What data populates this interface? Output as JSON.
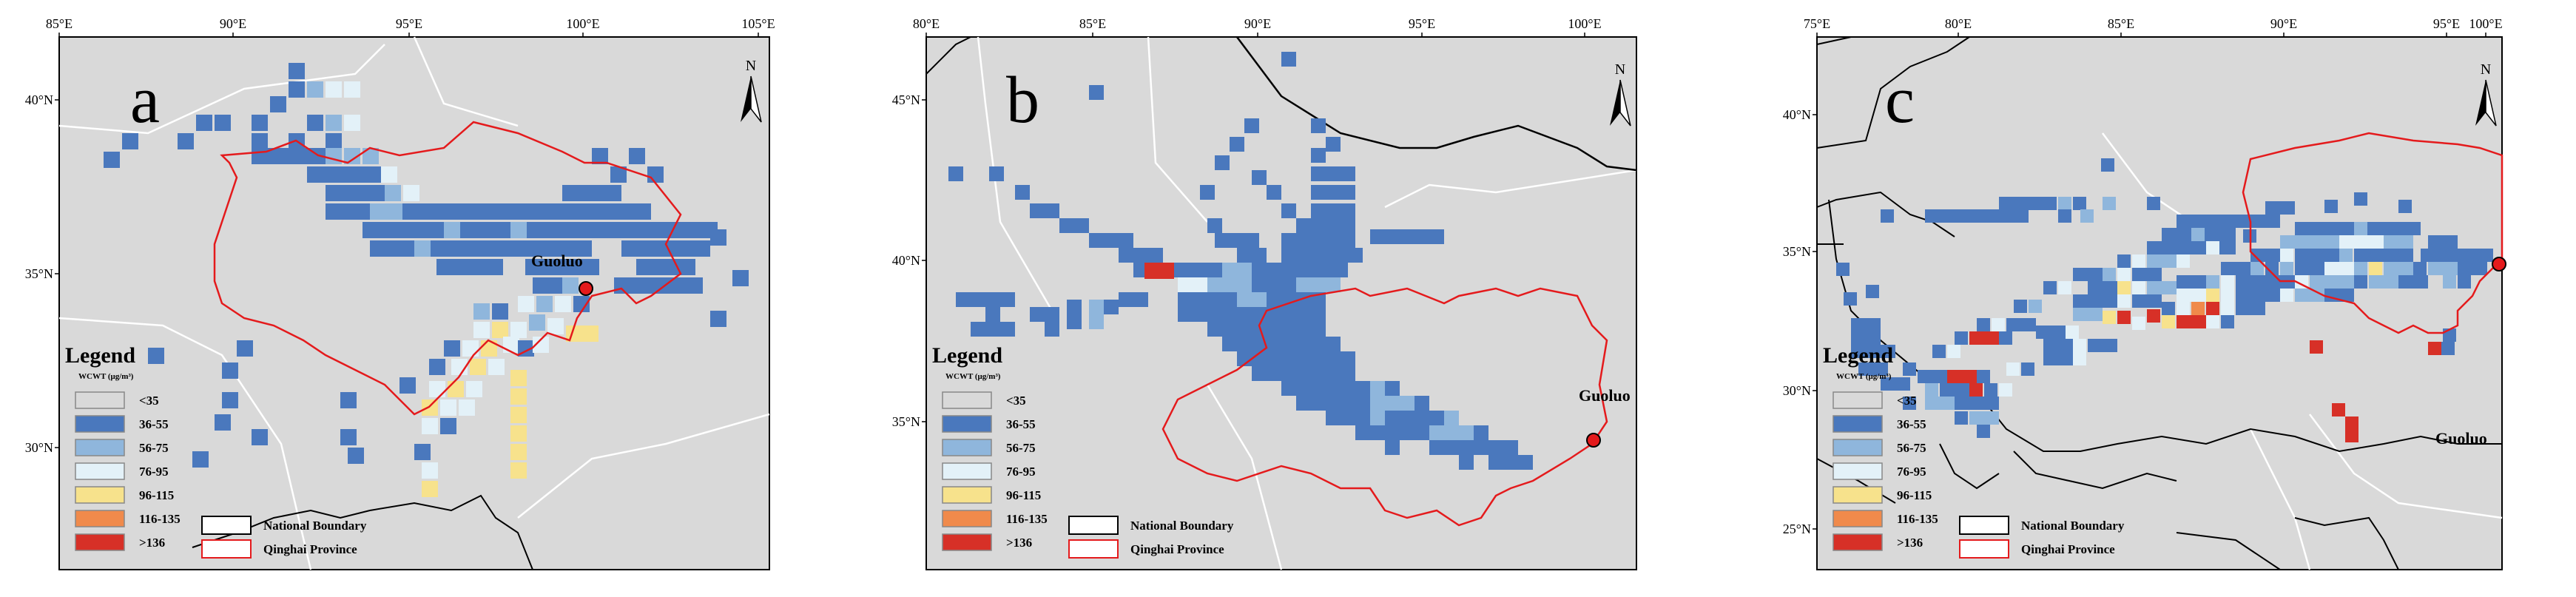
{
  "panels": [
    {
      "id": "a",
      "letter": "a",
      "lon_ticks": [
        "85°E",
        "90°E",
        "95°E",
        "100°E",
        "105°E"
      ],
      "lat_ticks": [
        "40°N",
        "35°N",
        "30°N"
      ],
      "place_label": "Guoluo"
    },
    {
      "id": "b",
      "letter": "b",
      "lon_ticks": [
        "80°E",
        "85°E",
        "90°E",
        "95°E",
        "100°E"
      ],
      "lat_ticks": [
        "45°N",
        "40°N",
        "35°N"
      ],
      "place_label": "Guoluo"
    },
    {
      "id": "c",
      "letter": "c",
      "lon_ticks": [
        "75°E",
        "80°E",
        "85°E",
        "90°E",
        "95°E",
        "100°E"
      ],
      "lat_ticks": [
        "40°N",
        "35°N",
        "30°N",
        "25°N"
      ],
      "place_label": "Guoluo"
    }
  ],
  "north_arrow_label": "N",
  "legend": {
    "title": "Legend",
    "subtitle": "WCWT (μg/m³)",
    "classes": [
      {
        "label": "<35",
        "color": "#d9d9d9"
      },
      {
        "label": "36-55",
        "color": "#4a78bd"
      },
      {
        "label": "56-75",
        "color": "#8fb6dc"
      },
      {
        "label": "76-95",
        "color": "#e3f1f8"
      },
      {
        "label": "96-115",
        "color": "#f7e28c"
      },
      {
        "label": "116-135",
        "color": "#f08a4b"
      },
      {
        "label": ">136",
        "color": "#d73027"
      }
    ],
    "lines": [
      {
        "label": "National Boundary",
        "color": "#000000"
      },
      {
        "label": "Qinghai  Province",
        "color": "#e41a1c"
      }
    ]
  },
  "colors": {
    "map_background": "#d9d9d9",
    "national_boundary": "#000000",
    "province_boundary": "#e41a1c",
    "station_marker": "#e41a1c"
  }
}
